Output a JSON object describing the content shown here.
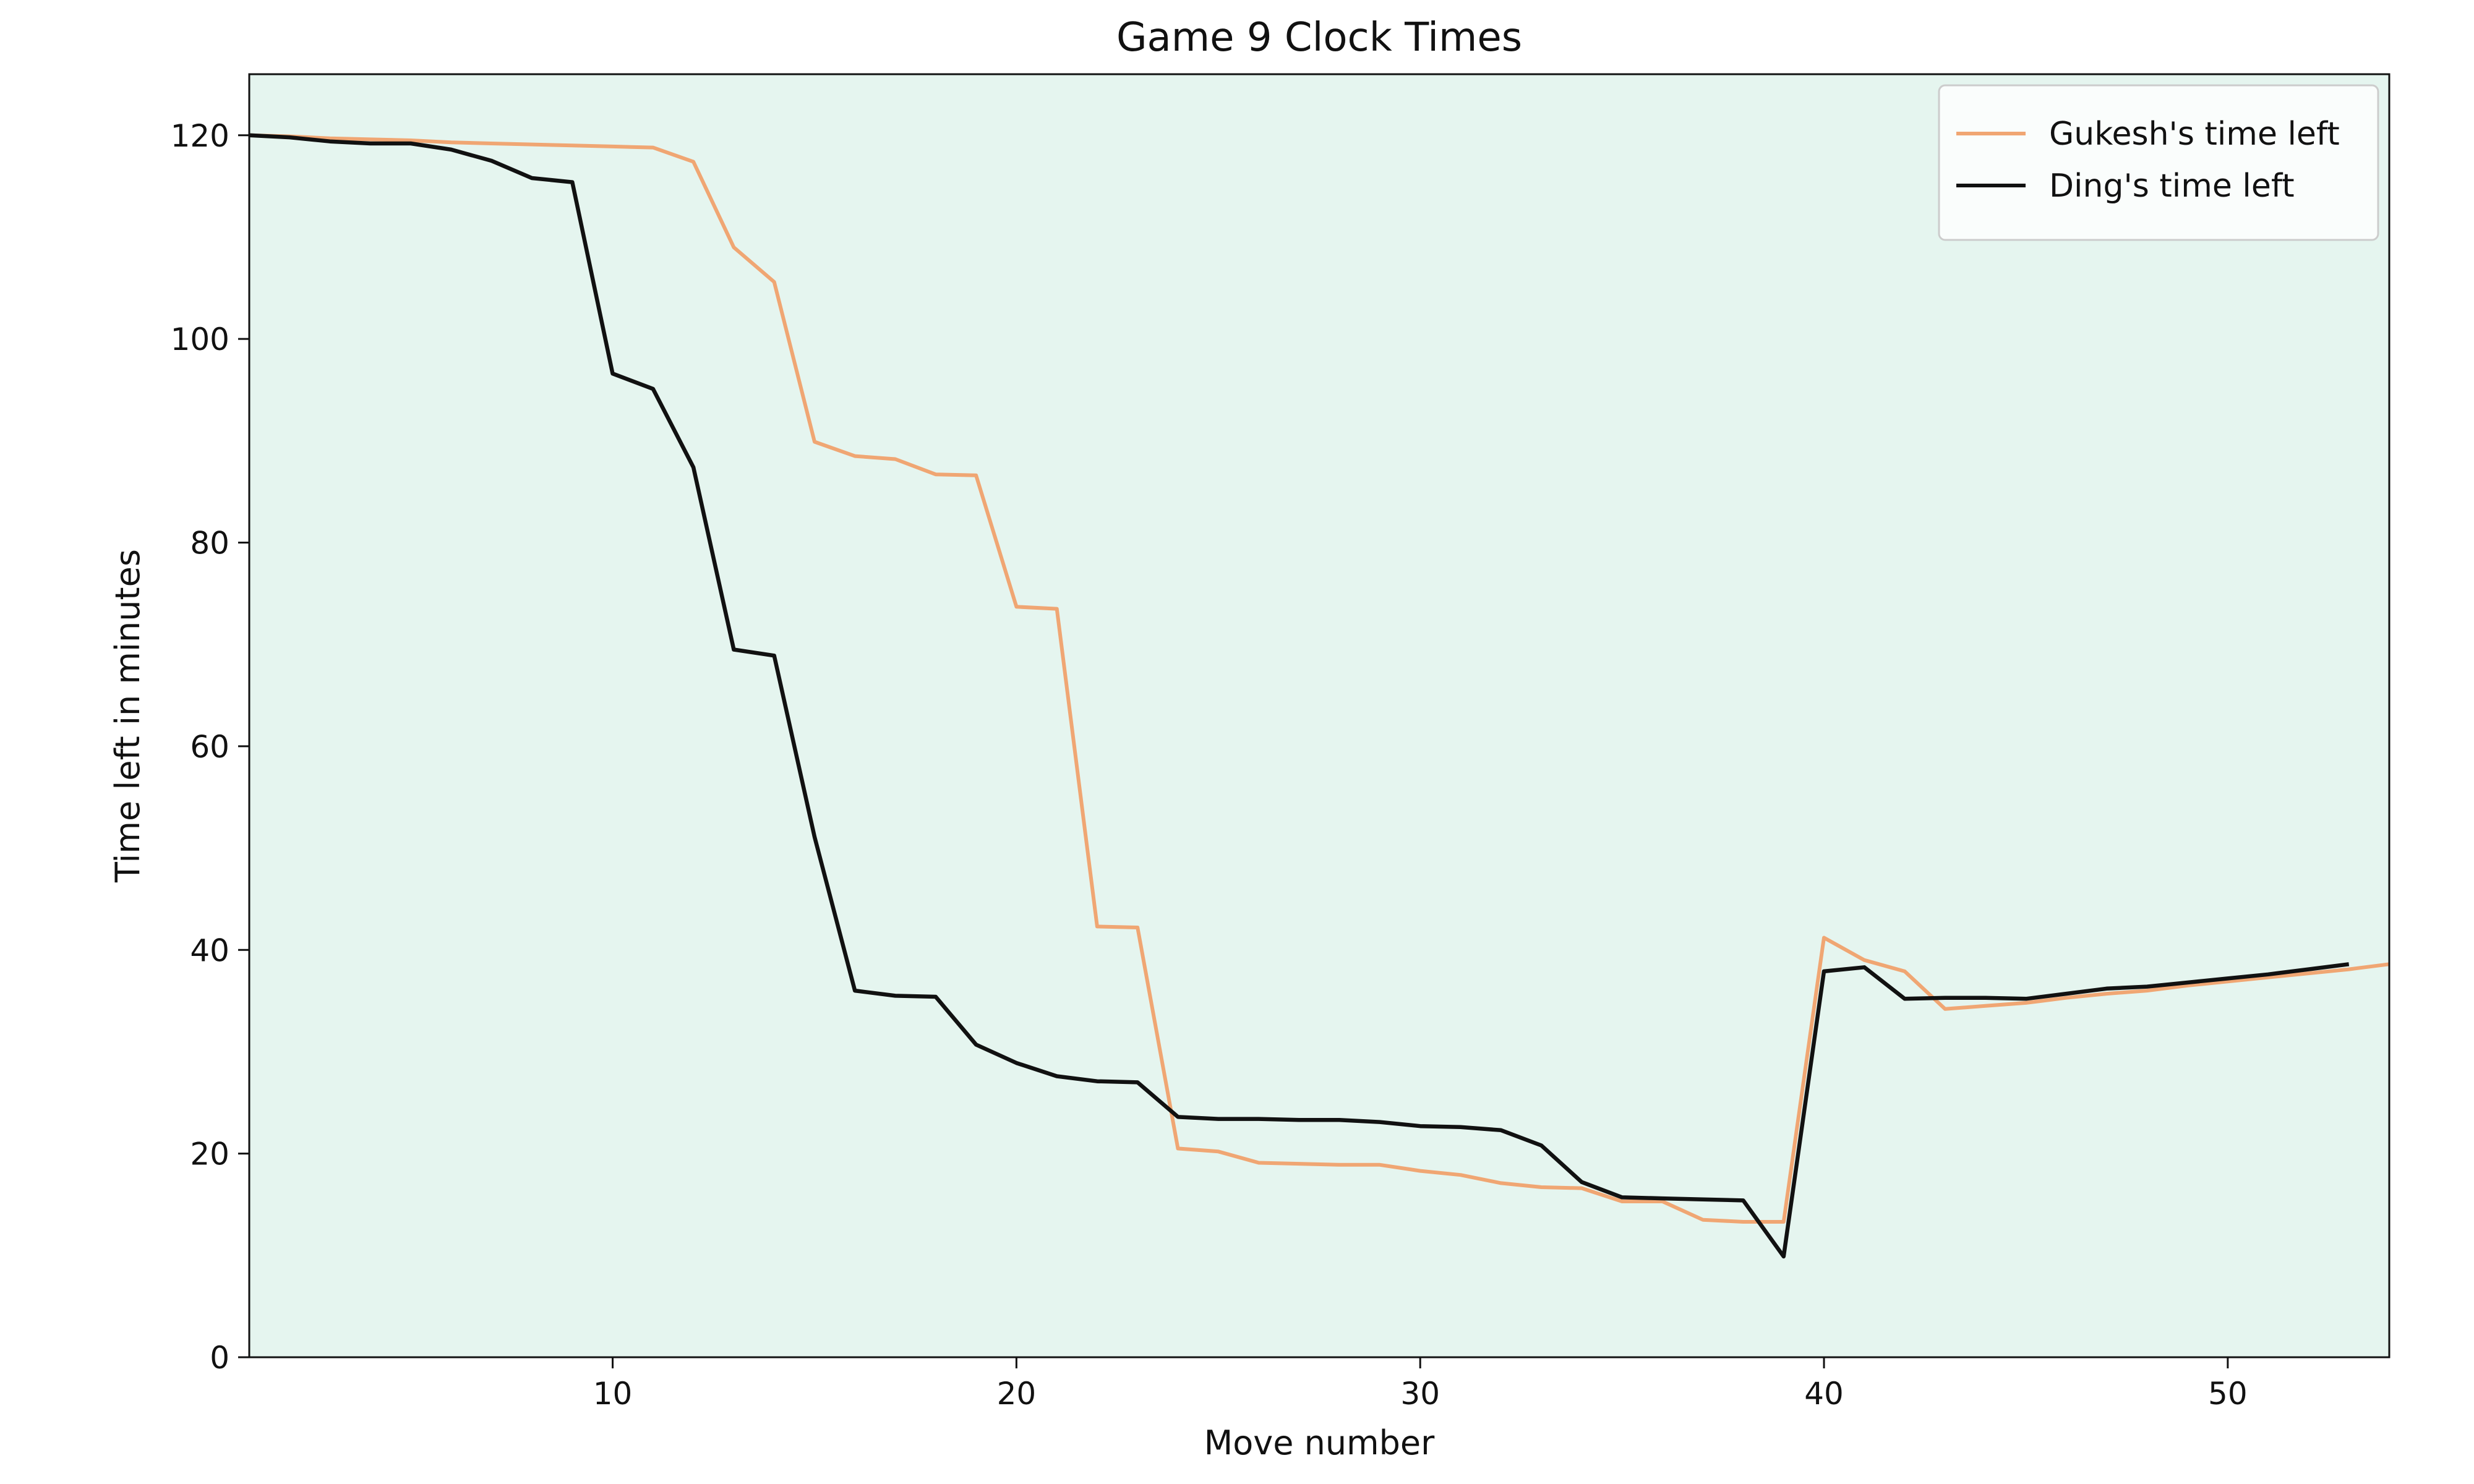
{
  "chart_data": {
    "type": "line",
    "title": "Game 9 Clock Times",
    "xlabel": "Move number",
    "ylabel": "Time left in minutes",
    "xlim": [
      1,
      54
    ],
    "ylim": [
      0,
      126
    ],
    "xticks": [
      10,
      20,
      30,
      40,
      50
    ],
    "yticks": [
      0,
      20,
      40,
      60,
      80,
      100,
      120
    ],
    "grid": false,
    "legend_position": "top-right",
    "background_color": "#e5f5ef",
    "series": [
      {
        "name": "Gukesh's time left",
        "color": "#f0a673",
        "x": [
          1,
          2,
          3,
          4,
          5,
          6,
          7,
          8,
          9,
          10,
          11,
          12,
          13,
          14,
          15,
          16,
          17,
          18,
          19,
          20,
          21,
          22,
          23,
          24,
          25,
          26,
          27,
          28,
          29,
          30,
          31,
          32,
          33,
          34,
          35,
          36,
          37,
          38,
          39,
          40,
          41,
          42,
          43,
          44,
          45,
          46,
          47,
          48,
          49,
          50,
          51,
          52,
          53,
          54
        ],
        "y": [
          120,
          119.9,
          119.7,
          119.6,
          119.5,
          119.3,
          119.2,
          119.1,
          119,
          118.9,
          118.8,
          117.4,
          109,
          105.6,
          89.9,
          88.5,
          88.2,
          86.7,
          86.6,
          73.7,
          73.5,
          42.3,
          42.2,
          20.5,
          20.2,
          19.1,
          19,
          18.9,
          18.9,
          18.3,
          17.9,
          17.1,
          16.7,
          16.6,
          15.3,
          15.3,
          13.5,
          13.3,
          13.3,
          41.2,
          39,
          37.9,
          34.2,
          34.5,
          34.8,
          35.3,
          35.7,
          36,
          36.5,
          36.9,
          37.3,
          37.7,
          38.1,
          38.6
        ]
      },
      {
        "name": "Ding's time left",
        "color": "#111111",
        "x": [
          1,
          2,
          3,
          4,
          5,
          6,
          7,
          8,
          9,
          10,
          11,
          12,
          13,
          14,
          15,
          16,
          17,
          18,
          19,
          20,
          21,
          22,
          23,
          24,
          25,
          26,
          27,
          28,
          29,
          30,
          31,
          32,
          33,
          34,
          35,
          36,
          37,
          38,
          39,
          40,
          41,
          42,
          43,
          44,
          45,
          46,
          47,
          48,
          49,
          50,
          51,
          52,
          53
        ],
        "y": [
          120,
          119.8,
          119.4,
          119.2,
          119.2,
          118.6,
          117.5,
          115.8,
          115.4,
          96.6,
          95.1,
          87.4,
          69.5,
          68.9,
          51.1,
          36,
          35.5,
          35.4,
          30.7,
          28.9,
          27.6,
          27.1,
          27,
          23.6,
          23.4,
          23.4,
          23.3,
          23.3,
          23.1,
          22.7,
          22.6,
          22.3,
          20.8,
          17.2,
          15.7,
          15.6,
          15.5,
          15.4,
          9.9,
          37.9,
          38.3,
          35.2,
          35.3,
          35.3,
          35.2,
          35.7,
          36.2,
          36.4,
          36.8,
          37.2,
          37.6,
          38.1,
          38.6
        ]
      }
    ]
  }
}
